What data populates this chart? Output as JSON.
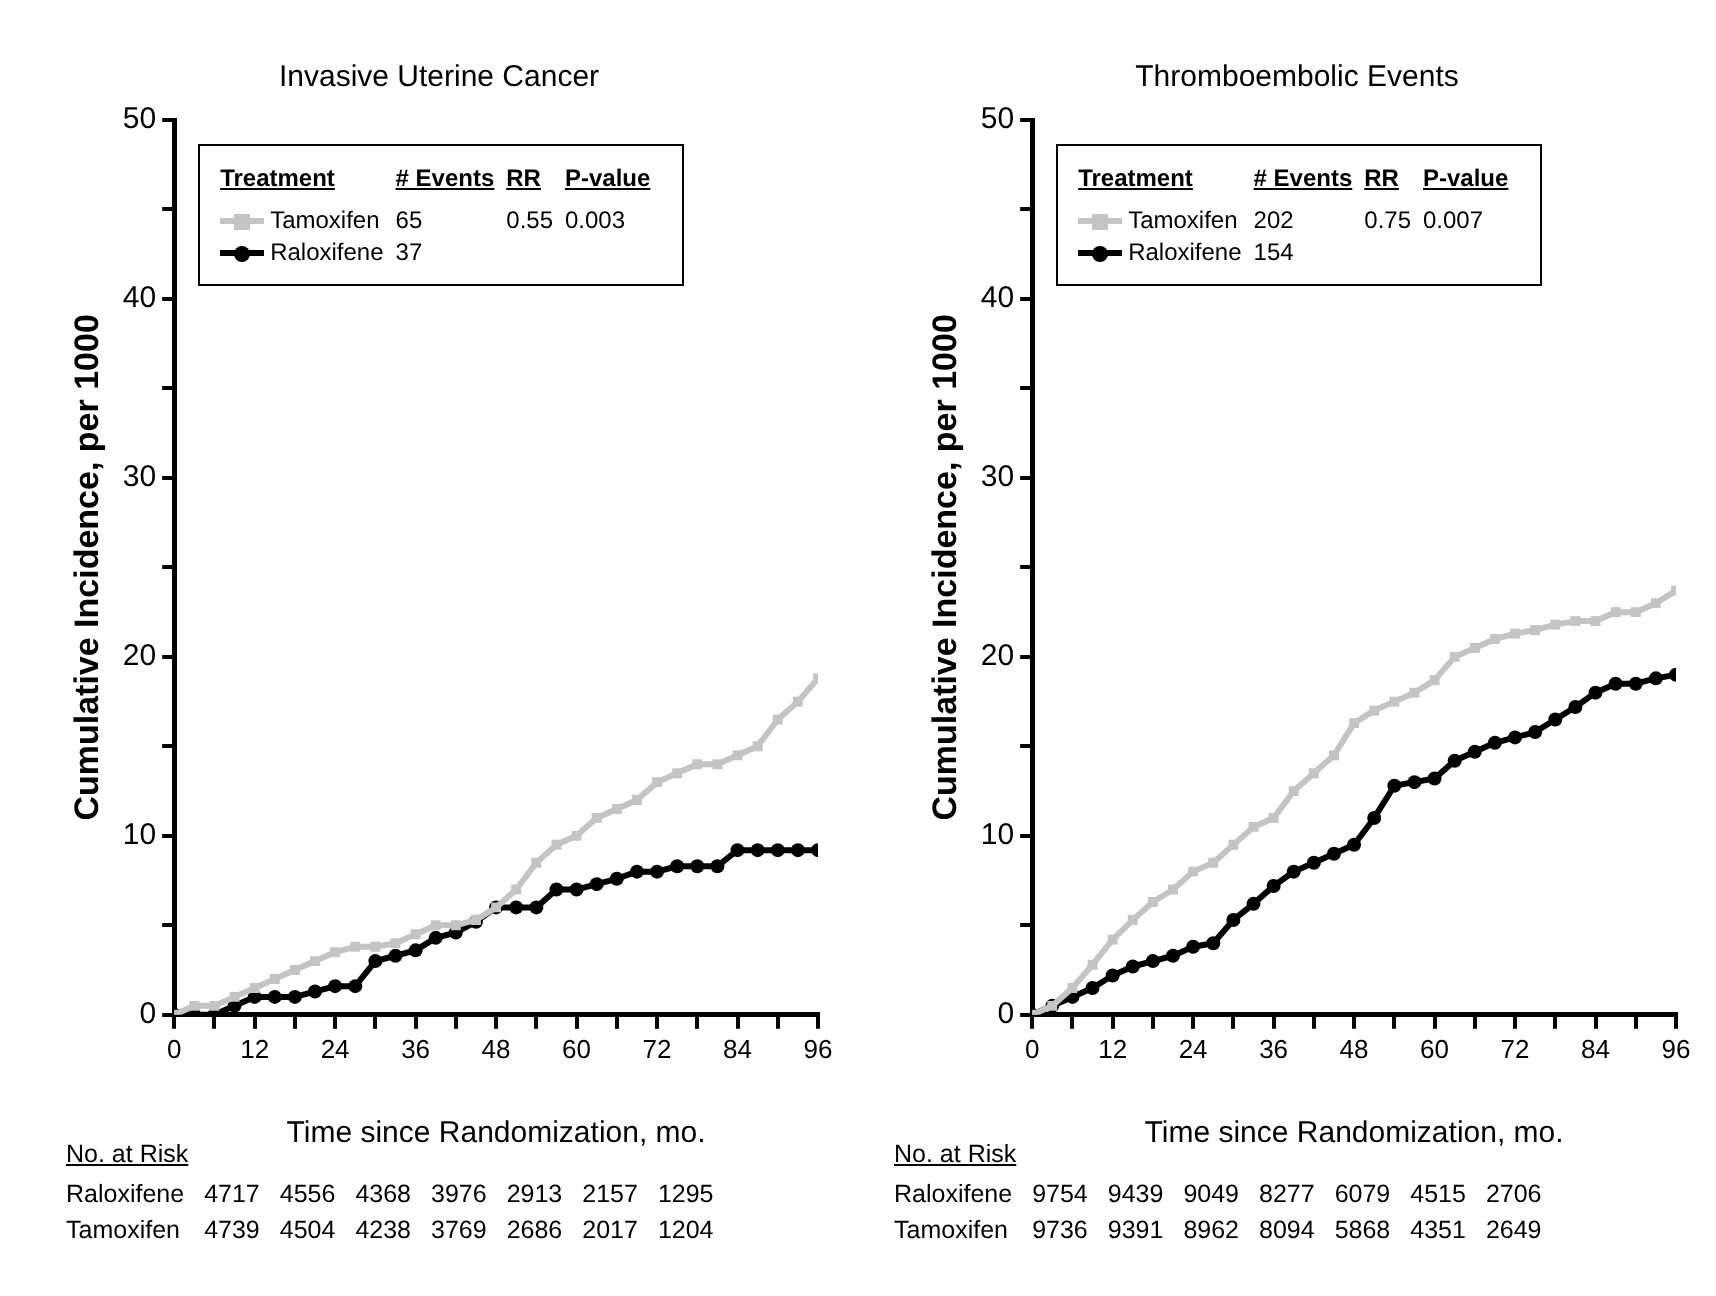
{
  "chart_data": [
    {
      "type": "line",
      "title": "Invasive Uterine Cancer",
      "xlabel": "Time since Randomization, mo.",
      "ylabel": "Cumulative Incidence, per 1000",
      "legend_title": "Treatment",
      "legend": "top left",
      "grid": false,
      "x": [
        0,
        3,
        6,
        9,
        12,
        15,
        18,
        21,
        24,
        27,
        30,
        33,
        36,
        39,
        42,
        45,
        48,
        51,
        54,
        57,
        60,
        63,
        66,
        69,
        72,
        75,
        78,
        81,
        84,
        87,
        90,
        93,
        96
      ],
      "xlim": [
        0,
        96
      ],
      "xticks": [
        0,
        {
          "value": 6,
          "label": null
        },
        12,
        {
          "value": 18,
          "label": null
        },
        24,
        {
          "value": 30,
          "label": null
        },
        36,
        {
          "value": 42,
          "label": null
        },
        48,
        {
          "value": 54,
          "label": null
        },
        60,
        {
          "value": 66,
          "label": null
        },
        72,
        {
          "value": 78,
          "label": null
        },
        84,
        {
          "value": 90,
          "label": null
        },
        96
      ],
      "ylim": [
        0,
        50
      ],
      "yticks": [
        0,
        {
          "value": 5,
          "label": null
        },
        10,
        {
          "value": 15,
          "label": null
        },
        20,
        {
          "value": 25,
          "label": null
        },
        30,
        {
          "value": 35,
          "label": null
        },
        40,
        {
          "value": 45,
          "label": null
        },
        50
      ],
      "series": [
        {
          "name": "Tamoxifen",
          "color": "#c4c4c4",
          "marker": "square",
          "values": [
            0,
            0.5,
            0.5,
            1,
            1.5,
            2,
            2.5,
            3,
            3.5,
            3.8,
            3.8,
            4,
            4.5,
            5,
            5,
            5.3,
            6,
            7,
            8.5,
            9.5,
            10,
            11,
            11.5,
            12,
            13,
            13.5,
            14,
            14,
            14.5,
            15,
            16.5,
            17.5,
            18.8
          ]
        },
        {
          "name": "Raloxifene",
          "color": "#000000",
          "marker": "circle",
          "values": [
            0,
            0,
            0,
            0.5,
            1,
            1,
            1,
            1.3,
            1.6,
            1.6,
            3,
            3.3,
            3.6,
            4.3,
            4.6,
            5.2,
            6,
            6,
            6,
            7,
            7,
            7.3,
            7.6,
            8,
            8,
            8.3,
            8.3,
            8.3,
            9.2,
            9.2,
            9.2,
            9.2,
            9.2
          ]
        }
      ],
      "annotations": [
        "# Events",
        "RR",
        "P-value",
        "65",
        "0.55",
        "0.003",
        "37",
        "No. at Risk",
        "Raloxifene 4717 4556 4368 3976 2913 2157 1295",
        "Tamoxifen 4739 4504 4238 3769 2686 2017 1204"
      ]
    },
    {
      "type": "line",
      "title": "Thromboembolic Events",
      "xlabel": "Time since Randomization, mo.",
      "ylabel": "Cumulative Incidence, per 1000",
      "legend_title": "Treatment",
      "legend": "top left",
      "grid": false,
      "x": [
        0,
        3,
        6,
        9,
        12,
        15,
        18,
        21,
        24,
        27,
        30,
        33,
        36,
        39,
        42,
        45,
        48,
        51,
        54,
        57,
        60,
        63,
        66,
        69,
        72,
        75,
        78,
        81,
        84,
        87,
        90,
        93,
        96
      ],
      "xlim": [
        0,
        96
      ],
      "xticks": [
        0,
        {
          "value": 6,
          "label": null
        },
        12,
        {
          "value": 18,
          "label": null
        },
        24,
        {
          "value": 30,
          "label": null
        },
        36,
        {
          "value": 42,
          "label": null
        },
        48,
        {
          "value": 54,
          "label": null
        },
        60,
        {
          "value": 66,
          "label": null
        },
        72,
        {
          "value": 78,
          "label": null
        },
        84,
        {
          "value": 90,
          "label": null
        },
        96
      ],
      "ylim": [
        0,
        50
      ],
      "yticks": [
        0,
        {
          "value": 5,
          "label": null
        },
        10,
        {
          "value": 15,
          "label": null
        },
        20,
        {
          "value": 25,
          "label": null
        },
        30,
        {
          "value": 35,
          "label": null
        },
        40,
        {
          "value": 45,
          "label": null
        },
        50
      ],
      "series": [
        {
          "name": "Tamoxifen",
          "color": "#c4c4c4",
          "marker": "square",
          "values": [
            0,
            0.5,
            1.5,
            2.8,
            4.2,
            5.3,
            6.3,
            7,
            8,
            8.5,
            9.5,
            10.5,
            11,
            12.5,
            13.5,
            14.5,
            16.3,
            17,
            17.5,
            18,
            18.7,
            20,
            20.5,
            21,
            21.3,
            21.5,
            21.8,
            22,
            22,
            22.5,
            22.5,
            23,
            23.7
          ]
        },
        {
          "name": "Raloxifene",
          "color": "#000000",
          "marker": "circle",
          "values": [
            0,
            0.5,
            1,
            1.5,
            2.2,
            2.7,
            3,
            3.3,
            3.8,
            4,
            5.3,
            6.2,
            7.2,
            8,
            8.5,
            9,
            9.5,
            11,
            12.8,
            13,
            13.2,
            14.2,
            14.7,
            15.2,
            15.5,
            15.8,
            16.5,
            17.2,
            18,
            18.5,
            18.5,
            18.8,
            19
          ]
        }
      ],
      "annotations": [
        "# Events",
        "RR",
        "P-value",
        "202",
        "0.75",
        "0.007",
        "154",
        "No. at Risk",
        "Raloxifene 9754 9439 9049 8277 6079 4515 2706",
        "Tamoxifen 9736 9391 8962 8094 5868 4351 2649"
      ]
    }
  ]
}
